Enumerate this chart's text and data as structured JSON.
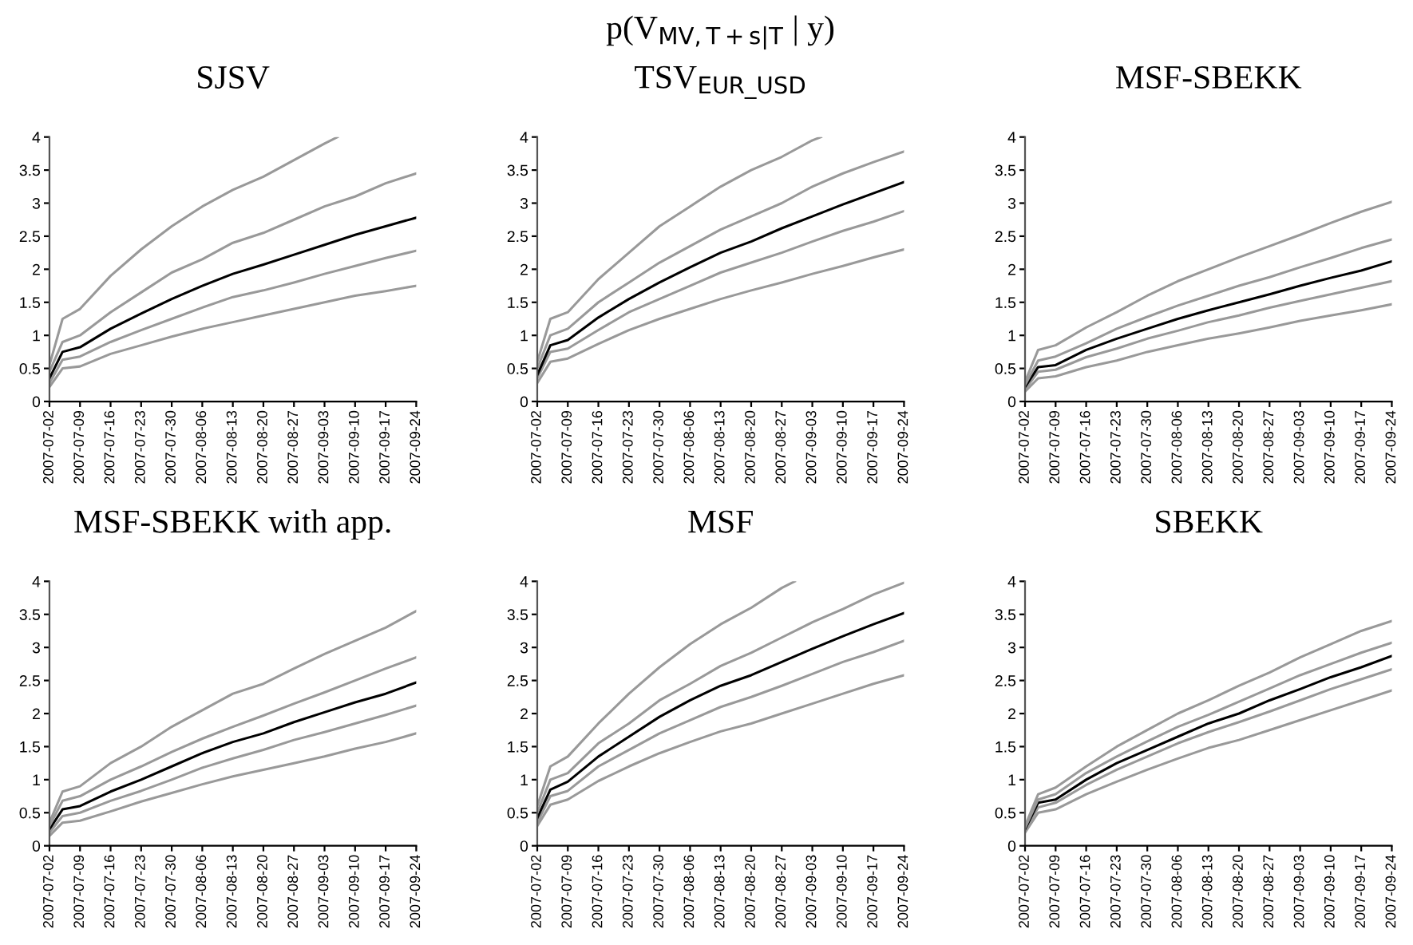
{
  "chart_data": [
    {
      "type": "line",
      "title": "SJSV",
      "x": [
        "2007-07-02",
        "2007-07-05",
        "2007-07-09",
        "2007-07-16",
        "2007-07-23",
        "2007-07-30",
        "2007-08-06",
        "2007-08-13",
        "2007-08-20",
        "2007-08-27",
        "2007-09-03",
        "2007-09-10",
        "2007-09-17",
        "2007-09-24"
      ],
      "xlim": [
        "2007-07-02",
        "2007-09-24"
      ],
      "xticks": [
        "2007-07-02",
        "2007-07-09",
        "2007-07-16",
        "2007-07-23",
        "2007-07-30",
        "2007-08-06",
        "2007-08-13",
        "2007-08-20",
        "2007-08-27",
        "2007-09-03",
        "2007-09-10",
        "2007-09-17",
        "2007-09-24"
      ],
      "ylim": [
        0,
        4
      ],
      "yticks": [
        0,
        0.5,
        1,
        1.5,
        2,
        2.5,
        3,
        3.5,
        4
      ],
      "grid": false,
      "legend": false,
      "line_style": "solid",
      "series": [
        {
          "color": "#999999",
          "values": [
            0.22,
            0.5,
            0.53,
            0.72,
            0.85,
            0.98,
            1.1,
            1.2,
            1.3,
            1.4,
            1.5,
            1.6,
            1.67,
            1.75
          ]
        },
        {
          "color": "#999999",
          "values": [
            0.28,
            0.63,
            0.68,
            0.9,
            1.08,
            1.25,
            1.42,
            1.58,
            1.68,
            1.8,
            1.93,
            2.05,
            2.17,
            2.28
          ]
        },
        {
          "color": "#000000",
          "values": [
            0.35,
            0.75,
            0.82,
            1.1,
            1.33,
            1.55,
            1.75,
            1.93,
            2.07,
            2.22,
            2.37,
            2.52,
            2.65,
            2.78
          ]
        },
        {
          "color": "#999999",
          "values": [
            0.45,
            0.9,
            1.0,
            1.35,
            1.65,
            1.95,
            2.15,
            2.4,
            2.55,
            2.75,
            2.95,
            3.1,
            3.3,
            3.45
          ]
        },
        {
          "color": "#999999",
          "x": [
            "2007-07-02",
            "2007-07-05",
            "2007-07-09",
            "2007-07-16",
            "2007-07-23",
            "2007-07-30",
            "2007-08-06",
            "2007-08-13",
            "2007-08-20",
            "2007-08-27",
            "2007-09-03",
            "2007-09-06"
          ],
          "values": [
            0.55,
            1.25,
            1.4,
            1.9,
            2.3,
            2.65,
            2.95,
            3.2,
            3.4,
            3.65,
            3.9,
            4.0
          ]
        }
      ]
    },
    {
      "type": "line",
      "title": "TSV$_{EUR_USD}$",
      "annotations": [
        "p(V$_{MV,T+s|T}$ | y)"
      ],
      "x": [
        "2007-07-02",
        "2007-07-05",
        "2007-07-09",
        "2007-07-16",
        "2007-07-23",
        "2007-07-30",
        "2007-08-06",
        "2007-08-13",
        "2007-08-20",
        "2007-08-27",
        "2007-09-03",
        "2007-09-10",
        "2007-09-17",
        "2007-09-24"
      ],
      "xlim": [
        "2007-07-02",
        "2007-09-24"
      ],
      "xticks": [
        "2007-07-02",
        "2007-07-09",
        "2007-07-16",
        "2007-07-23",
        "2007-07-30",
        "2007-08-06",
        "2007-08-13",
        "2007-08-20",
        "2007-08-27",
        "2007-09-03",
        "2007-09-10",
        "2007-09-17",
        "2007-09-24"
      ],
      "ylim": [
        0,
        4
      ],
      "yticks": [
        0,
        0.5,
        1,
        1.5,
        2,
        2.5,
        3,
        3.5,
        4
      ],
      "grid": false,
      "legend": false,
      "line_style": "solid",
      "series": [
        {
          "color": "#999999",
          "values": [
            0.28,
            0.6,
            0.65,
            0.87,
            1.08,
            1.25,
            1.4,
            1.55,
            1.68,
            1.8,
            1.93,
            2.05,
            2.18,
            2.3
          ]
        },
        {
          "color": "#999999",
          "values": [
            0.35,
            0.75,
            0.8,
            1.08,
            1.35,
            1.55,
            1.75,
            1.95,
            2.1,
            2.25,
            2.42,
            2.58,
            2.72,
            2.88
          ]
        },
        {
          "color": "#000000",
          "values": [
            0.4,
            0.85,
            0.93,
            1.27,
            1.55,
            1.8,
            2.03,
            2.25,
            2.42,
            2.62,
            2.8,
            2.98,
            3.15,
            3.32
          ]
        },
        {
          "color": "#999999",
          "values": [
            0.5,
            1.0,
            1.1,
            1.5,
            1.8,
            2.1,
            2.35,
            2.6,
            2.8,
            3.0,
            3.25,
            3.45,
            3.62,
            3.78
          ]
        },
        {
          "color": "#999999",
          "x": [
            "2007-07-02",
            "2007-07-05",
            "2007-07-09",
            "2007-07-16",
            "2007-07-23",
            "2007-07-30",
            "2007-08-06",
            "2007-08-13",
            "2007-08-20",
            "2007-08-27",
            "2007-09-03",
            "2007-09-05"
          ],
          "values": [
            0.6,
            1.25,
            1.35,
            1.85,
            2.25,
            2.65,
            2.95,
            3.25,
            3.5,
            3.7,
            3.95,
            4.0
          ]
        }
      ]
    },
    {
      "type": "line",
      "title": "MSF-SBEKK",
      "x": [
        "2007-07-02",
        "2007-07-05",
        "2007-07-09",
        "2007-07-16",
        "2007-07-23",
        "2007-07-30",
        "2007-08-06",
        "2007-08-13",
        "2007-08-20",
        "2007-08-27",
        "2007-09-03",
        "2007-09-10",
        "2007-09-17",
        "2007-09-24"
      ],
      "xlim": [
        "2007-07-02",
        "2007-09-24"
      ],
      "xticks": [
        "2007-07-02",
        "2007-07-09",
        "2007-07-16",
        "2007-07-23",
        "2007-07-30",
        "2007-08-06",
        "2007-08-13",
        "2007-08-20",
        "2007-08-27",
        "2007-09-03",
        "2007-09-10",
        "2007-09-17",
        "2007-09-24"
      ],
      "ylim": [
        0,
        4
      ],
      "yticks": [
        0,
        0.5,
        1,
        1.5,
        2,
        2.5,
        3,
        3.5,
        4
      ],
      "grid": false,
      "legend": false,
      "line_style": "solid",
      "series": [
        {
          "color": "#999999",
          "values": [
            0.15,
            0.35,
            0.38,
            0.52,
            0.62,
            0.75,
            0.85,
            0.95,
            1.03,
            1.12,
            1.22,
            1.3,
            1.38,
            1.47
          ]
        },
        {
          "color": "#999999",
          "values": [
            0.18,
            0.45,
            0.48,
            0.67,
            0.8,
            0.95,
            1.07,
            1.2,
            1.3,
            1.42,
            1.52,
            1.62,
            1.72,
            1.82
          ]
        },
        {
          "color": "#000000",
          "values": [
            0.22,
            0.52,
            0.55,
            0.78,
            0.95,
            1.1,
            1.25,
            1.38,
            1.5,
            1.62,
            1.75,
            1.87,
            1.98,
            2.12
          ]
        },
        {
          "color": "#999999",
          "values": [
            0.25,
            0.62,
            0.68,
            0.88,
            1.1,
            1.28,
            1.45,
            1.6,
            1.75,
            1.88,
            2.03,
            2.17,
            2.32,
            2.45
          ]
        },
        {
          "color": "#999999",
          "values": [
            0.3,
            0.78,
            0.85,
            1.12,
            1.35,
            1.6,
            1.82,
            2.0,
            2.18,
            2.35,
            2.52,
            2.7,
            2.87,
            3.02
          ]
        }
      ]
    },
    {
      "type": "line",
      "title": "MSF-SBEKK with app.",
      "x": [
        "2007-07-02",
        "2007-07-05",
        "2007-07-09",
        "2007-07-16",
        "2007-07-23",
        "2007-07-30",
        "2007-08-06",
        "2007-08-13",
        "2007-08-20",
        "2007-08-27",
        "2007-09-03",
        "2007-09-10",
        "2007-09-17",
        "2007-09-24"
      ],
      "xlim": [
        "2007-07-02",
        "2007-09-24"
      ],
      "xticks": [
        "2007-07-02",
        "2007-07-09",
        "2007-07-16",
        "2007-07-23",
        "2007-07-30",
        "2007-08-06",
        "2007-08-13",
        "2007-08-20",
        "2007-08-27",
        "2007-09-03",
        "2007-09-10",
        "2007-09-17",
        "2007-09-24"
      ],
      "ylim": [
        0,
        4
      ],
      "yticks": [
        0,
        0.5,
        1,
        1.5,
        2,
        2.5,
        3,
        3.5,
        4
      ],
      "grid": false,
      "legend": false,
      "line_style": "solid",
      "series": [
        {
          "color": "#999999",
          "values": [
            0.15,
            0.35,
            0.38,
            0.52,
            0.67,
            0.8,
            0.93,
            1.05,
            1.15,
            1.25,
            1.35,
            1.47,
            1.57,
            1.7
          ]
        },
        {
          "color": "#999999",
          "values": [
            0.2,
            0.45,
            0.5,
            0.68,
            0.83,
            1.0,
            1.18,
            1.32,
            1.45,
            1.6,
            1.72,
            1.85,
            1.98,
            2.12
          ]
        },
        {
          "color": "#000000",
          "values": [
            0.25,
            0.55,
            0.6,
            0.82,
            1.0,
            1.2,
            1.4,
            1.57,
            1.7,
            1.87,
            2.02,
            2.17,
            2.3,
            2.47
          ]
        },
        {
          "color": "#999999",
          "values": [
            0.3,
            0.68,
            0.75,
            1.0,
            1.2,
            1.42,
            1.62,
            1.8,
            1.97,
            2.15,
            2.32,
            2.5,
            2.68,
            2.85
          ]
        },
        {
          "color": "#999999",
          "values": [
            0.35,
            0.82,
            0.9,
            1.25,
            1.5,
            1.8,
            2.05,
            2.3,
            2.45,
            2.68,
            2.9,
            3.1,
            3.3,
            3.55
          ]
        }
      ]
    },
    {
      "type": "line",
      "title": "MSF",
      "x": [
        "2007-07-02",
        "2007-07-05",
        "2007-07-09",
        "2007-07-16",
        "2007-07-23",
        "2007-07-30",
        "2007-08-06",
        "2007-08-13",
        "2007-08-20",
        "2007-08-27",
        "2007-09-03",
        "2007-09-10",
        "2007-09-17",
        "2007-09-24"
      ],
      "xlim": [
        "2007-07-02",
        "2007-09-24"
      ],
      "xticks": [
        "2007-07-02",
        "2007-07-09",
        "2007-07-16",
        "2007-07-23",
        "2007-07-30",
        "2007-08-06",
        "2007-08-13",
        "2007-08-20",
        "2007-08-27",
        "2007-09-03",
        "2007-09-10",
        "2007-09-17",
        "2007-09-24"
      ],
      "ylim": [
        0,
        4
      ],
      "yticks": [
        0,
        0.5,
        1,
        1.5,
        2,
        2.5,
        3,
        3.5,
        4
      ],
      "grid": false,
      "legend": false,
      "line_style": "solid",
      "series": [
        {
          "color": "#999999",
          "values": [
            0.3,
            0.62,
            0.7,
            0.98,
            1.2,
            1.4,
            1.57,
            1.73,
            1.85,
            2.0,
            2.15,
            2.3,
            2.45,
            2.58
          ]
        },
        {
          "color": "#999999",
          "values": [
            0.35,
            0.75,
            0.83,
            1.2,
            1.45,
            1.7,
            1.9,
            2.1,
            2.25,
            2.42,
            2.6,
            2.78,
            2.93,
            3.1
          ]
        },
        {
          "color": "#000000",
          "values": [
            0.42,
            0.85,
            0.97,
            1.35,
            1.65,
            1.95,
            2.2,
            2.42,
            2.58,
            2.78,
            2.98,
            3.17,
            3.35,
            3.52
          ]
        },
        {
          "color": "#999999",
          "values": [
            0.5,
            1.0,
            1.1,
            1.55,
            1.85,
            2.2,
            2.45,
            2.72,
            2.92,
            3.15,
            3.38,
            3.58,
            3.8,
            3.98
          ]
        },
        {
          "color": "#999999",
          "x": [
            "2007-07-02",
            "2007-07-05",
            "2007-07-09",
            "2007-07-16",
            "2007-07-23",
            "2007-07-30",
            "2007-08-06",
            "2007-08-13",
            "2007-08-20",
            "2007-08-27",
            "2007-08-30"
          ],
          "values": [
            0.6,
            1.2,
            1.35,
            1.85,
            2.3,
            2.7,
            3.05,
            3.35,
            3.6,
            3.9,
            4.0
          ]
        }
      ]
    },
    {
      "type": "line",
      "title": "SBEKK",
      "x": [
        "2007-07-02",
        "2007-07-05",
        "2007-07-09",
        "2007-07-16",
        "2007-07-23",
        "2007-07-30",
        "2007-08-06",
        "2007-08-13",
        "2007-08-20",
        "2007-08-27",
        "2007-09-03",
        "2007-09-10",
        "2007-09-17",
        "2007-09-24"
      ],
      "xlim": [
        "2007-07-02",
        "2007-09-24"
      ],
      "xticks": [
        "2007-07-02",
        "2007-07-09",
        "2007-07-16",
        "2007-07-23",
        "2007-07-30",
        "2007-08-06",
        "2007-08-13",
        "2007-08-20",
        "2007-08-27",
        "2007-09-03",
        "2007-09-10",
        "2007-09-17",
        "2007-09-24"
      ],
      "ylim": [
        0,
        4
      ],
      "yticks": [
        0,
        0.5,
        1,
        1.5,
        2,
        2.5,
        3,
        3.5,
        4
      ],
      "grid": false,
      "legend": false,
      "line_style": "solid",
      "series": [
        {
          "color": "#999999",
          "values": [
            0.2,
            0.5,
            0.55,
            0.78,
            0.97,
            1.15,
            1.32,
            1.48,
            1.6,
            1.75,
            1.9,
            2.05,
            2.2,
            2.35
          ]
        },
        {
          "color": "#999999",
          "values": [
            0.23,
            0.58,
            0.65,
            0.92,
            1.15,
            1.35,
            1.55,
            1.72,
            1.87,
            2.03,
            2.2,
            2.37,
            2.52,
            2.67
          ]
        },
        {
          "color": "#000000",
          "values": [
            0.25,
            0.65,
            0.7,
            1.0,
            1.25,
            1.45,
            1.65,
            1.85,
            2.0,
            2.2,
            2.37,
            2.55,
            2.7,
            2.87
          ]
        },
        {
          "color": "#999999",
          "values": [
            0.27,
            0.7,
            0.78,
            1.1,
            1.35,
            1.58,
            1.8,
            1.98,
            2.18,
            2.38,
            2.58,
            2.75,
            2.92,
            3.07
          ]
        },
        {
          "color": "#999999",
          "values": [
            0.3,
            0.78,
            0.88,
            1.2,
            1.5,
            1.75,
            2.0,
            2.2,
            2.42,
            2.62,
            2.85,
            3.05,
            3.25,
            3.4
          ]
        }
      ]
    }
  ]
}
